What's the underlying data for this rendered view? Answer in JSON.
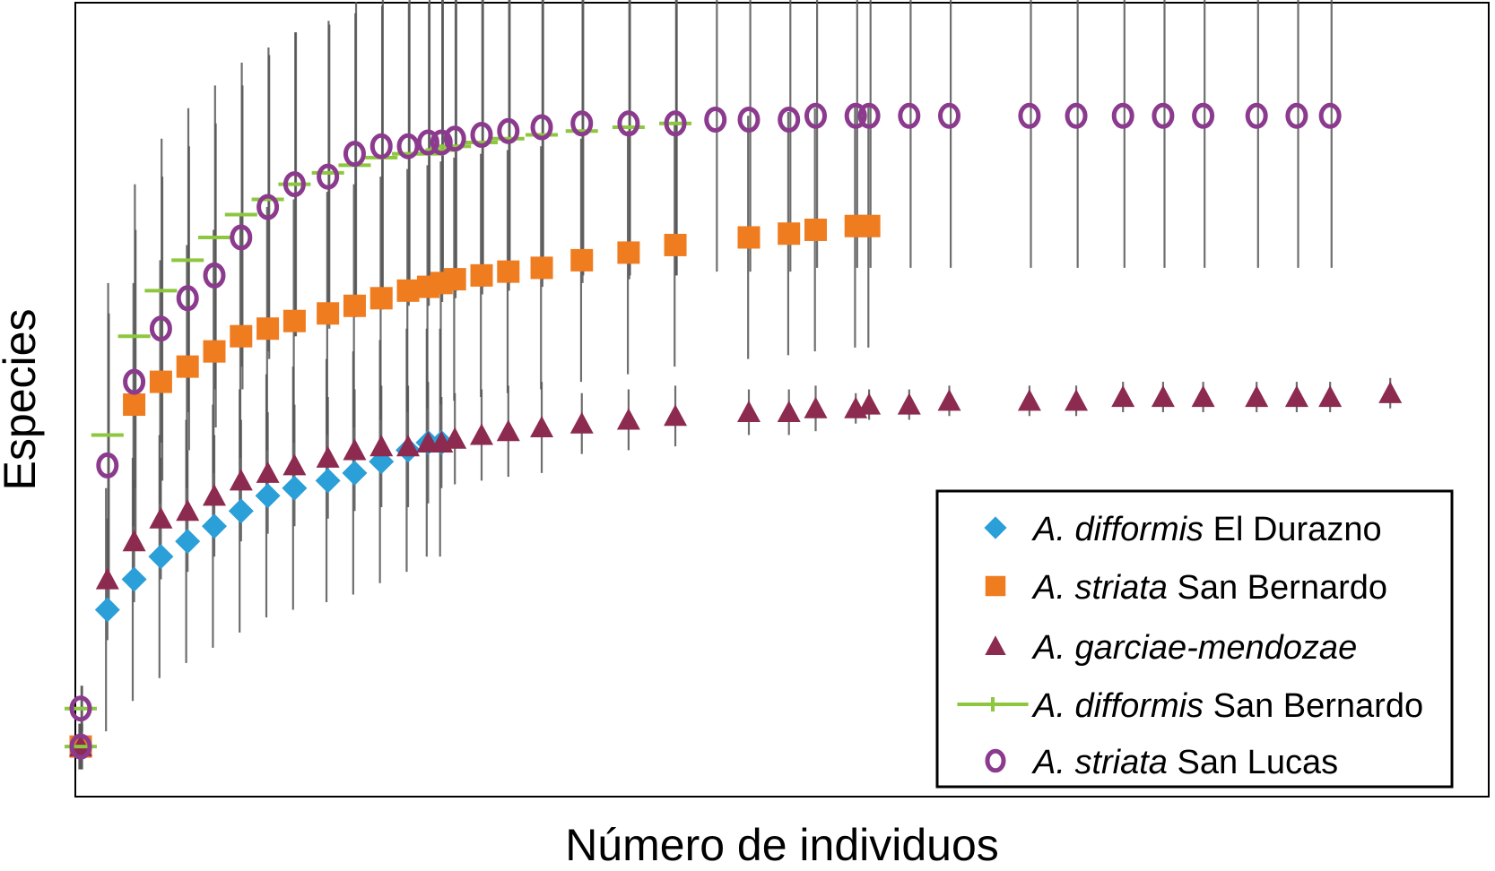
{
  "chart_data": {
    "type": "scatter",
    "title": "",
    "xlabel": "Número de individuos",
    "ylabel": "Especies",
    "xlim": [
      0,
      100
    ],
    "ylim": [
      0,
      100
    ],
    "grid": false,
    "x_ticks_labeled": false,
    "y_ticks_labeled": false,
    "legend_position": "bottom-right",
    "series": [
      {
        "name": "A. difformis El Durazno",
        "name_italic": "A. difformis",
        "name_rest": " El Durazno",
        "marker": "diamond",
        "color": "#2a9fd8",
        "x": [
          0,
          2,
          4,
          6,
          8,
          10,
          12,
          14,
          16,
          18.5,
          20.5,
          22.5,
          24.5,
          26,
          27
        ],
        "y": [
          6,
          24,
          28,
          31,
          33,
          35,
          37,
          39,
          40,
          41,
          42,
          43.5,
          45,
          46,
          46
        ],
        "err": [
          3,
          16,
          16,
          16,
          16,
          16,
          16,
          16,
          16,
          16,
          16,
          16,
          16,
          15,
          15
        ]
      },
      {
        "name": "A. striata San Bernardo",
        "name_italic": "A. striata",
        "name_rest": " San Bernardo",
        "marker": "square",
        "color": "#f07c20",
        "x": [
          0,
          4,
          6,
          8,
          10,
          12,
          14,
          16,
          18.5,
          20.5,
          22.5,
          24.5,
          26,
          27,
          28,
          30,
          32,
          34.5,
          37.5,
          41,
          44.5,
          50,
          53,
          55,
          58,
          59
        ],
        "y": [
          6,
          51,
          54,
          56,
          58,
          60,
          61,
          62,
          63,
          64,
          65,
          66,
          66.5,
          67,
          67.5,
          68,
          68.5,
          69,
          70,
          71,
          72,
          73,
          73.5,
          74,
          74.5,
          74.5
        ],
        "err": [
          3,
          16,
          16,
          16,
          16,
          16,
          16,
          16,
          16,
          16,
          16,
          16,
          16,
          16,
          16,
          16,
          16,
          16,
          16,
          16,
          16,
          16,
          16,
          16,
          16,
          16
        ]
      },
      {
        "name": "A. garciae-mendozae",
        "name_italic": "A. garciae-mendozae",
        "name_rest": "",
        "marker": "triangle",
        "color": "#8c2a50",
        "x": [
          0,
          2,
          4,
          6,
          8,
          10,
          12,
          14,
          16,
          18.5,
          20.5,
          22.5,
          24.5,
          26,
          27,
          28,
          30,
          32,
          34.5,
          37.5,
          41,
          44.5,
          50,
          53,
          55,
          58,
          59,
          62,
          65,
          71,
          74.5,
          78,
          81,
          84,
          88,
          91,
          93.5,
          98
        ],
        "y": [
          6,
          28,
          33,
          36,
          37,
          39,
          41,
          42,
          43,
          44,
          45,
          45.5,
          45.5,
          46,
          46,
          46.5,
          47,
          47.5,
          48,
          48.5,
          49,
          49.5,
          50,
          50,
          50.5,
          50.5,
          51,
          51,
          51.5,
          51.5,
          51.5,
          52,
          52,
          52,
          52,
          52,
          52,
          52.5
        ],
        "err": [
          3,
          8,
          8,
          8,
          8,
          8,
          8,
          8,
          8,
          8,
          8,
          8,
          8,
          8,
          6,
          6,
          6,
          6,
          6,
          4,
          4,
          4,
          3,
          3,
          3,
          2,
          2,
          2,
          2,
          2,
          2,
          2,
          2,
          2,
          2,
          2,
          2,
          2
        ]
      },
      {
        "name": "A. difformis San Bernardo",
        "name_italic": "A. difformis",
        "name_rest": " San Bernardo",
        "marker": "hline",
        "color": "#8dc63f",
        "x": [
          0,
          0,
          2,
          4,
          6,
          8,
          10,
          12,
          14,
          16,
          18.5,
          20.5,
          22.5,
          24.5,
          26,
          27,
          28,
          30,
          32,
          34.5,
          37.5,
          41,
          44.5
        ],
        "y": [
          6,
          11,
          47,
          60,
          66,
          70,
          73,
          76,
          78,
          80,
          81.5,
          82.5,
          83.5,
          84,
          84,
          84.5,
          85,
          85.5,
          86,
          86.5,
          87,
          87.5,
          88
        ],
        "err": [
          3,
          3,
          20,
          20,
          20,
          20,
          20,
          20,
          20,
          20,
          20,
          20,
          20,
          20,
          20,
          20,
          20,
          20,
          20,
          20,
          20,
          20,
          20
        ]
      },
      {
        "name": "A. striata San Lucas",
        "name_italic": "A. striata",
        "name_rest": " San Lucas",
        "marker": "circle",
        "color": "#8b3a8e",
        "x": [
          0,
          0,
          2,
          4,
          6,
          8,
          10,
          12,
          14,
          16,
          18.5,
          20.5,
          22.5,
          24.5,
          26,
          27,
          28,
          30,
          32,
          34.5,
          37.5,
          41,
          44.5,
          47.5,
          50,
          53,
          55,
          58,
          59,
          62,
          65,
          71,
          74.5,
          78,
          81,
          84,
          88,
          91,
          93.5
        ],
        "y": [
          6,
          11,
          43,
          54,
          61,
          65,
          68,
          73,
          77,
          80,
          81,
          84,
          85,
          85,
          85.5,
          85.5,
          86,
          86.5,
          87,
          87.5,
          88,
          88,
          88,
          88.5,
          88.5,
          88.5,
          89,
          89,
          89,
          89,
          89,
          89,
          89,
          89,
          89,
          89,
          89,
          89,
          89
        ],
        "err": [
          3,
          3,
          20,
          20,
          20,
          20,
          20,
          20,
          20,
          20,
          20,
          20,
          20,
          20,
          20,
          20,
          20,
          20,
          20,
          20,
          20,
          20,
          20,
          20,
          20,
          20,
          20,
          20,
          20,
          20,
          20,
          20,
          20,
          20,
          20,
          20,
          20,
          20,
          20
        ]
      }
    ]
  }
}
